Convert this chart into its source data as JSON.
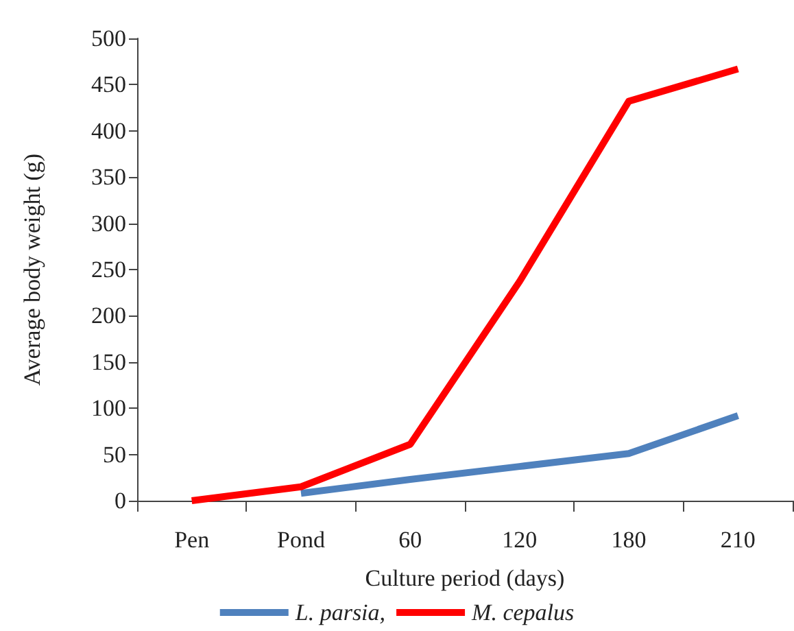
{
  "chart_data": {
    "type": "line",
    "xlabel": "Culture period (days)",
    "ylabel": "Average body weight (g)",
    "categories": [
      "Pen",
      "Pond",
      "60",
      "120",
      "180",
      "210"
    ],
    "series": [
      {
        "name": "L. parsia,",
        "color": "#4f81bd",
        "values": [
          null,
          8,
          23,
          37,
          51,
          92
        ]
      },
      {
        "name": "M. cepalus",
        "color": "#ff0000",
        "values": [
          0,
          15,
          61,
          237,
          432,
          467
        ]
      }
    ],
    "ylim": [
      0,
      500
    ],
    "yticks": [
      0,
      50,
      100,
      150,
      200,
      250,
      300,
      350,
      400,
      450,
      500
    ],
    "grid": false,
    "legend": "bottom",
    "marker": "none",
    "line_style": "solid"
  }
}
